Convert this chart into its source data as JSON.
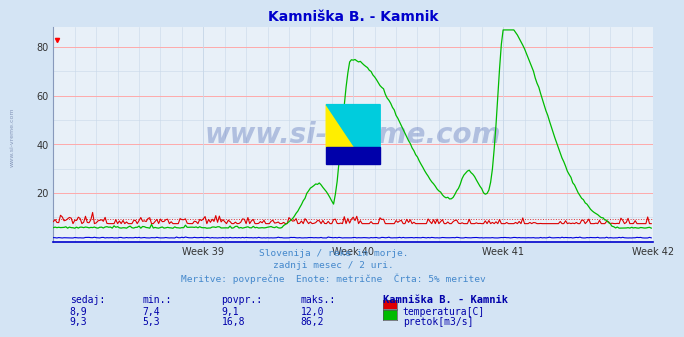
{
  "title": "Kamniška B. - Kamnik",
  "title_color": "#0000cc",
  "bg_color": "#d4e4f4",
  "plot_bg_color": "#e8f0f8",
  "watermark": "www.si-vreme.com",
  "watermark_color": "#2040a0",
  "subtitle_lines": [
    "Slovenija / reke in morje.",
    "zadnji mesec / 2 uri.",
    "Meritve: povprečne  Enote: metrične  Črta: 5% meritev"
  ],
  "subtitle_color": "#4488cc",
  "ylim": [
    0,
    88
  ],
  "yticks": [
    20,
    40,
    60,
    80
  ],
  "week_labels": [
    "Week 39",
    "Week 40",
    "Week 41",
    "Week 42"
  ],
  "grid_color_major": "#ffaaaa",
  "grid_color_minor": "#c8d8e8",
  "n_points": 336,
  "temp_color": "#dd0000",
  "flow_color": "#00bb00",
  "height_color": "#0000dd",
  "temp_min": 7.4,
  "temp_max": 12.0,
  "temp_avg": 9.1,
  "temp_now": 8.9,
  "flow_min": 5.3,
  "flow_max": 86.2,
  "flow_avg": 16.8,
  "flow_now": 9.3,
  "legend": [
    {
      "label": "temperatura[C]",
      "color": "#dd0000"
    },
    {
      "label": "pretok[m3/s]",
      "color": "#00bb00"
    }
  ],
  "table_color": "#0000aa",
  "label_color": "#0000aa",
  "header_color": "#0000aa"
}
